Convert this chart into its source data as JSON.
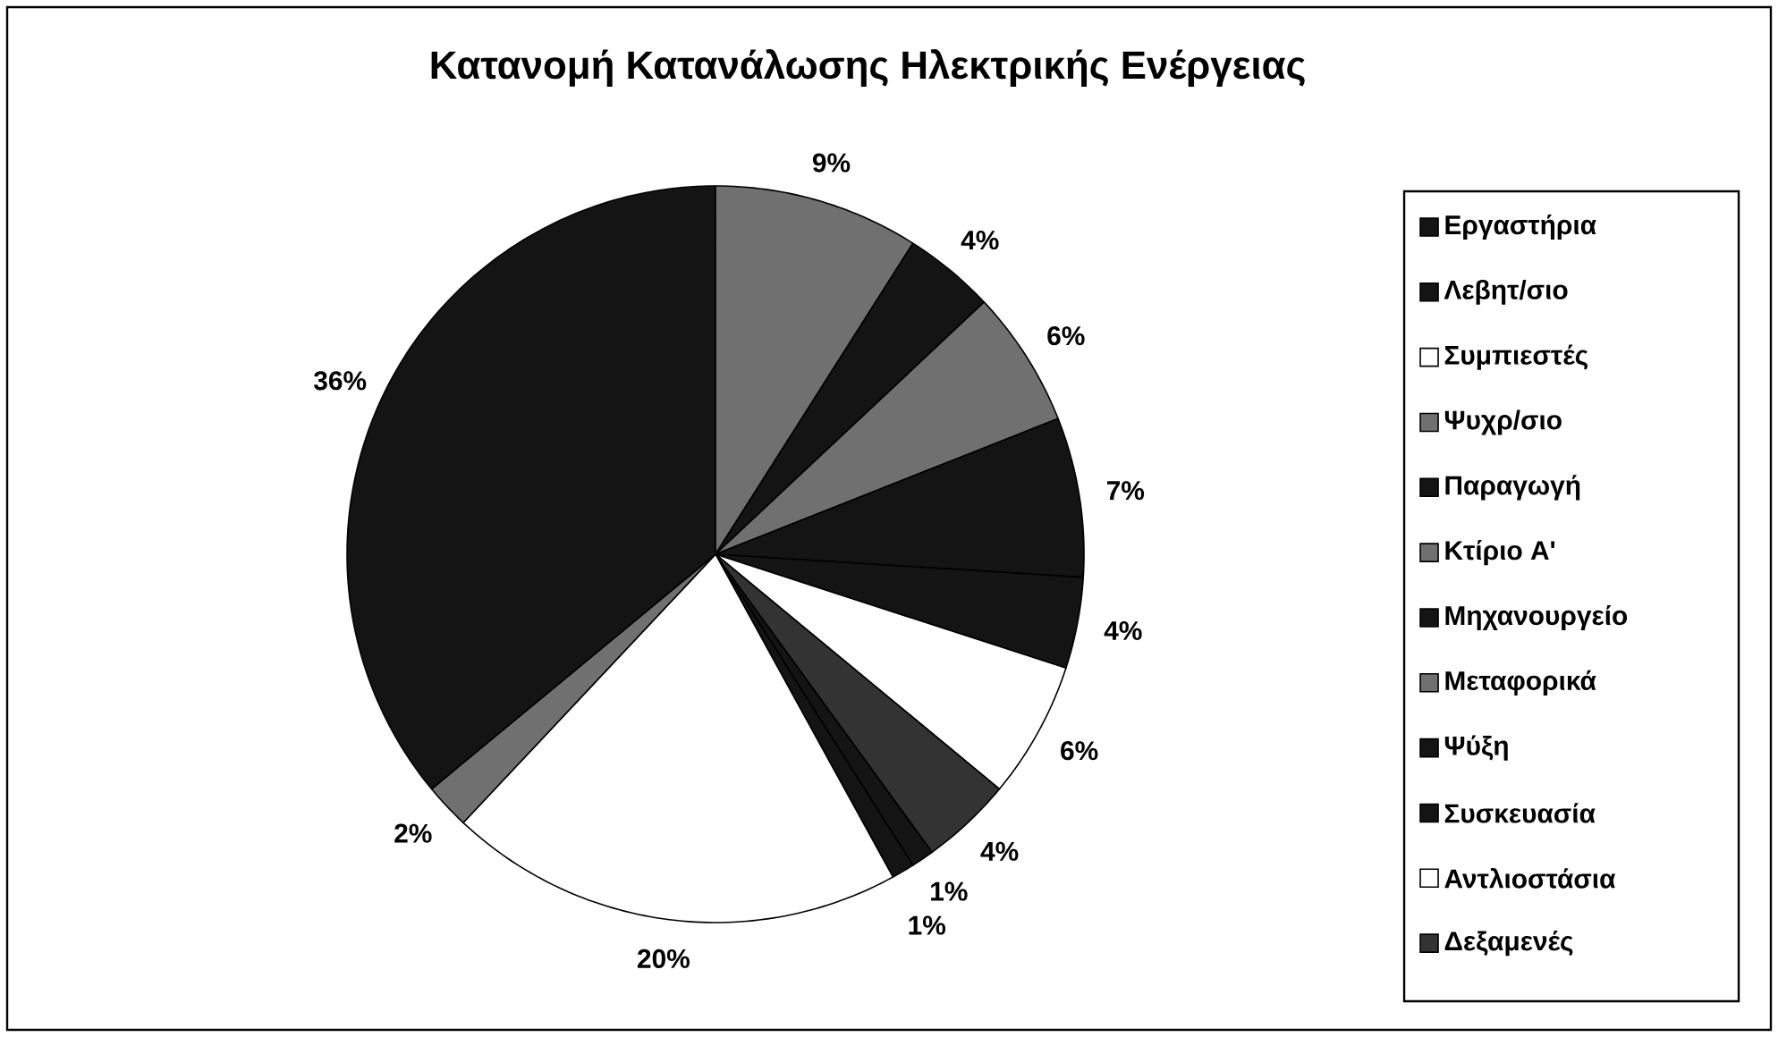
{
  "chart_data": {
    "type": "pie",
    "title": "Κατανομή Κατανάλωσης Ηλεκτρικής Ενέργειας",
    "categories": [
      "Εργαστήρια",
      "Λεβητ/σιο",
      "Συμπιεστές",
      "Ψυχρ/σιο",
      "Παραγωγή",
      "Κτίριο Α'",
      "Μηχανουργείο",
      "Μεταφορικά",
      "Ψύξη",
      "Συσκευασία",
      "Αντλιοστάσια",
      "Δεξαμενές"
    ],
    "values": [
      1,
      1,
      20,
      2,
      36,
      9,
      4,
      6,
      7,
      4,
      6,
      4
    ],
    "colors": [
      "#141414",
      "#141414",
      "#ffffff",
      "#707070",
      "#141414",
      "#707070",
      "#141414",
      "#707070",
      "#141414",
      "#141414",
      "#ffffff",
      "#333333"
    ],
    "value_labels": [
      "1%",
      "1%",
      "20%",
      "2%",
      "36%",
      "9%",
      "4%",
      "6%",
      "7%",
      "4%",
      "6%",
      "4%"
    ],
    "legend": "right"
  }
}
